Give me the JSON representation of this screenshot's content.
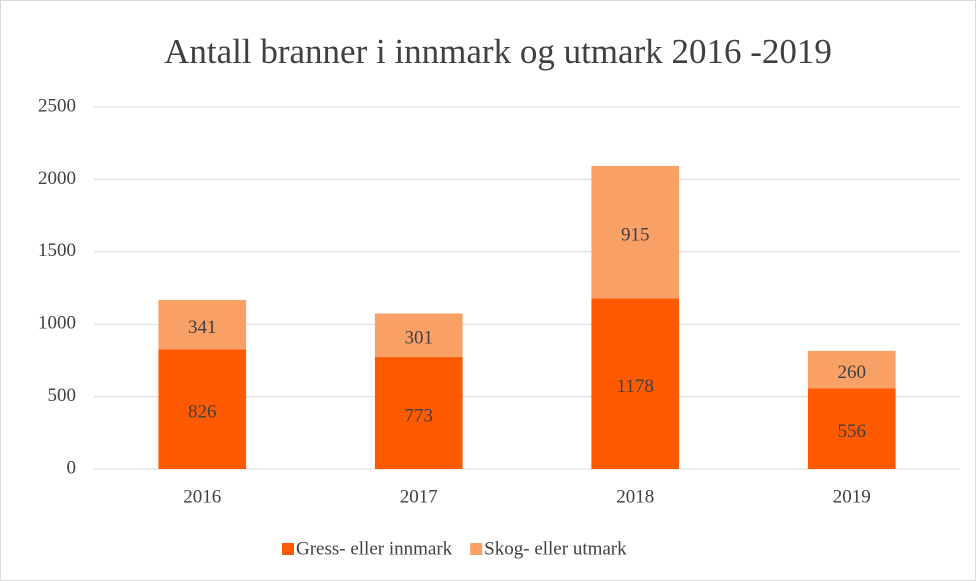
{
  "chart_data": {
    "type": "bar",
    "stacked": true,
    "title": "Antall branner i innmark og utmark 2016 -2019",
    "categories": [
      "2016",
      "2017",
      "2018",
      "2019"
    ],
    "series": [
      {
        "name": "Gress- eller innmark",
        "color": "#ff5a00",
        "values": [
          826,
          773,
          1178,
          556
        ]
      },
      {
        "name": "Skog- eller utmark",
        "color": "#f9a066",
        "values": [
          341,
          301,
          915,
          260
        ]
      }
    ],
    "ylim": [
      0,
      2500
    ],
    "yticks": [
      0,
      500,
      1000,
      1500,
      2000,
      2500
    ],
    "grid": true,
    "legend": "bottom"
  }
}
